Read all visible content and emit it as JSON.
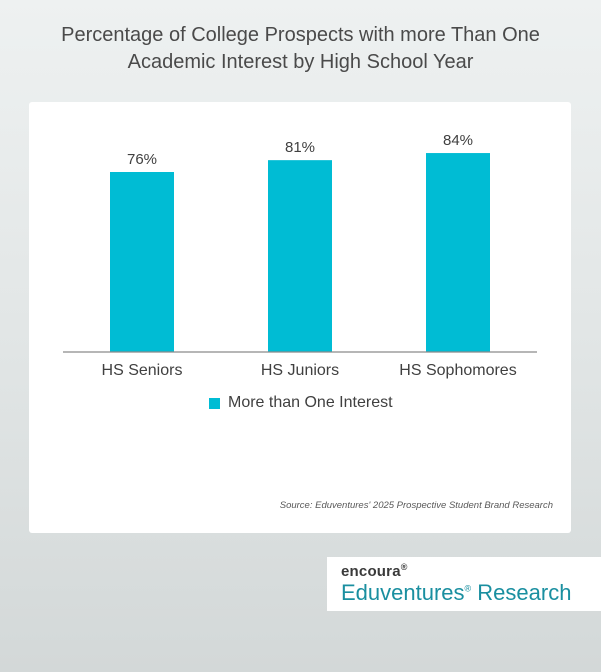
{
  "chart_data": {
    "type": "bar",
    "title": "Percentage of College Prospects with more Than One Academic Interest by High School Year",
    "title_lines": [
      "Percentage of College Prospects with more Than One",
      "Academic Interest by High School Year"
    ],
    "categories": [
      "HS Seniors",
      "HS Juniors",
      "HS Sophomores"
    ],
    "series": [
      {
        "name": "More than One Interest",
        "values": [
          76,
          81,
          84
        ],
        "labels": [
          "76%",
          "81%",
          "84%"
        ],
        "color": "#00bcd4"
      }
    ],
    "xlabel": "",
    "ylabel": "",
    "ylim": [
      0,
      100
    ],
    "grid": false,
    "legend": "bottom",
    "source": "Source: Eduventures' 2025 Prospective Student Brand Research"
  },
  "brand": {
    "top": "encoura",
    "bottom": "Eduventures",
    "bottom_suffix": "Research",
    "reg": "®"
  }
}
